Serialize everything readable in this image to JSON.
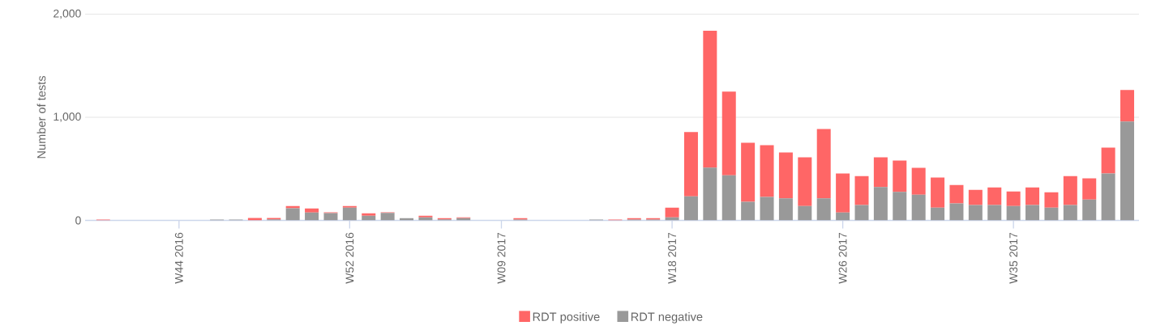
{
  "chart_data": {
    "type": "bar",
    "stacked": true,
    "ylabel": "Number of tests",
    "categories": [
      null,
      null,
      null,
      null,
      "W44 2016",
      null,
      null,
      null,
      null,
      null,
      null,
      null,
      null,
      "W52 2016",
      null,
      null,
      null,
      null,
      null,
      null,
      null,
      "W09 2017",
      null,
      null,
      null,
      null,
      null,
      null,
      null,
      null,
      "W18 2017",
      null,
      null,
      null,
      null,
      null,
      null,
      null,
      null,
      "W26 2017",
      null,
      null,
      null,
      null,
      null,
      null,
      null,
      null,
      "W35 2017",
      null,
      null,
      null,
      null,
      null,
      null
    ],
    "series": [
      {
        "name": "RDT negative",
        "color": "#999999",
        "values": [
          0,
          0,
          0,
          0,
          0,
          0,
          8,
          8,
          0,
          10,
          118,
          76,
          71,
          123,
          45,
          73,
          21,
          29,
          10,
          21,
          0,
          0,
          8,
          0,
          0,
          0,
          8,
          0,
          8,
          8,
          29,
          234,
          512,
          438,
          181,
          228,
          213,
          139,
          213,
          76,
          150,
          323,
          276,
          249,
          123,
          165,
          150,
          150,
          139,
          150,
          123,
          150,
          202,
          454,
          958
        ]
      },
      {
        "name": "RDT positive",
        "color": "#ff6666",
        "values": [
          8,
          0,
          0,
          0,
          0,
          0,
          0,
          0,
          24,
          14,
          21,
          39,
          8,
          16,
          23,
          6,
          0,
          16,
          11,
          8,
          0,
          0,
          13,
          0,
          0,
          0,
          0,
          8,
          13,
          13,
          94,
          622,
          1328,
          812,
          572,
          502,
          446,
          473,
          674,
          378,
          280,
          289,
          304,
          260,
          292,
          179,
          147,
          170,
          142,
          170,
          150,
          280,
          205,
          252,
          307
        ]
      }
    ],
    "ylim": [
      0,
      2000
    ],
    "yticks": [
      0,
      {
        "value": 1000,
        "label": "1,000"
      },
      {
        "value": 2000,
        "label": "2,000"
      }
    ],
    "grid": "y",
    "legend": "bottom"
  }
}
